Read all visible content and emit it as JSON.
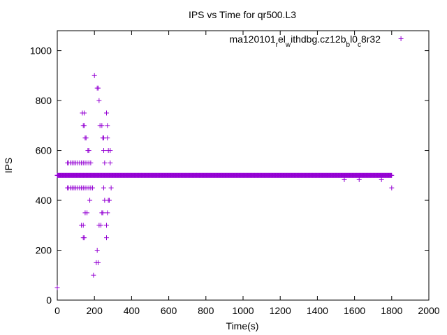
{
  "chart_data": {
    "type": "scatter",
    "title": "IPS vs Time for qr500.L3",
    "xlabel": "Time(s)",
    "ylabel": "IPS",
    "xlim": [
      0,
      2000
    ],
    "ylim": [
      0,
      1080
    ],
    "xticks": [
      0,
      200,
      400,
      600,
      800,
      1000,
      1200,
      1400,
      1600,
      1800,
      2000
    ],
    "yticks": [
      0,
      200,
      400,
      600,
      800,
      1000
    ],
    "grid": false,
    "legend_position": "top-right",
    "marker": "+",
    "color": "#9400d3",
    "series": [
      {
        "name_parts": [
          {
            "text": "ma120101",
            "sub": false
          },
          {
            "text": "r",
            "sub": true
          },
          {
            "text": "el",
            "sub": false
          },
          {
            "text": "w",
            "sub": true
          },
          {
            "text": "ithdbg.cz12b",
            "sub": false
          },
          {
            "text": "b",
            "sub": true
          },
          {
            "text": "l0",
            "sub": false
          },
          {
            "text": "c",
            "sub": true
          },
          {
            "text": "8r32",
            "sub": false
          }
        ],
        "band": {
          "y": 500,
          "x_start": 0,
          "x_end": 1800,
          "step": 3
        },
        "points": [
          [
            0,
            50
          ],
          [
            0,
            500
          ],
          [
            200,
            900
          ],
          [
            215,
            850
          ],
          [
            220,
            850
          ],
          [
            225,
            800
          ],
          [
            135,
            750
          ],
          [
            145,
            750
          ],
          [
            265,
            750
          ],
          [
            140,
            700
          ],
          [
            145,
            700
          ],
          [
            230,
            700
          ],
          [
            240,
            700
          ],
          [
            270,
            700
          ],
          [
            150,
            650
          ],
          [
            155,
            650
          ],
          [
            245,
            650
          ],
          [
            250,
            650
          ],
          [
            270,
            650
          ],
          [
            165,
            600
          ],
          [
            170,
            600
          ],
          [
            250,
            600
          ],
          [
            275,
            600
          ],
          [
            285,
            600
          ],
          [
            55,
            550
          ],
          [
            60,
            550
          ],
          [
            70,
            550
          ],
          [
            80,
            550
          ],
          [
            90,
            550
          ],
          [
            100,
            550
          ],
          [
            110,
            550
          ],
          [
            120,
            550
          ],
          [
            130,
            550
          ],
          [
            140,
            550
          ],
          [
            150,
            550
          ],
          [
            160,
            550
          ],
          [
            170,
            550
          ],
          [
            180,
            550
          ],
          [
            255,
            550
          ],
          [
            285,
            550
          ],
          [
            55,
            450
          ],
          [
            60,
            450
          ],
          [
            70,
            450
          ],
          [
            80,
            450
          ],
          [
            90,
            450
          ],
          [
            100,
            450
          ],
          [
            110,
            450
          ],
          [
            120,
            450
          ],
          [
            130,
            450
          ],
          [
            140,
            450
          ],
          [
            150,
            450
          ],
          [
            160,
            450
          ],
          [
            170,
            450
          ],
          [
            180,
            450
          ],
          [
            190,
            450
          ],
          [
            250,
            450
          ],
          [
            290,
            450
          ],
          [
            1545,
            483
          ],
          [
            1625,
            483
          ],
          [
            1745,
            483
          ],
          [
            1800,
            450
          ],
          [
            175,
            400
          ],
          [
            255,
            400
          ],
          [
            275,
            400
          ],
          [
            280,
            400
          ],
          [
            150,
            350
          ],
          [
            160,
            350
          ],
          [
            240,
            350
          ],
          [
            245,
            350
          ],
          [
            270,
            350
          ],
          [
            130,
            300
          ],
          [
            140,
            300
          ],
          [
            225,
            300
          ],
          [
            235,
            300
          ],
          [
            265,
            300
          ],
          [
            140,
            250
          ],
          [
            145,
            250
          ],
          [
            265,
            250
          ],
          [
            215,
            200
          ],
          [
            210,
            150
          ],
          [
            220,
            150
          ],
          [
            195,
            100
          ]
        ],
        "legend_sample": [
          1850,
          1048
        ]
      }
    ]
  }
}
